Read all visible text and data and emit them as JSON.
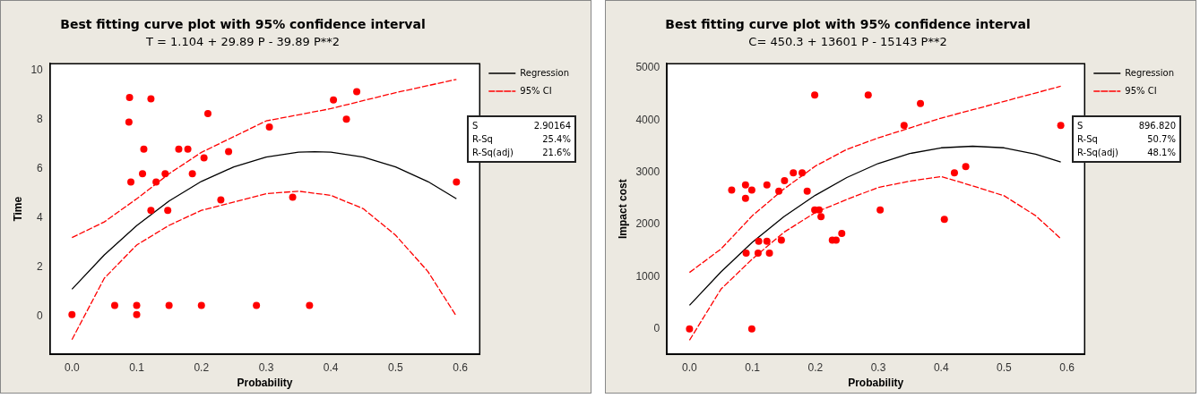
{
  "chart_data": [
    {
      "type": "scatter",
      "title": "Best fitting curve plot with 95%  confidence interval",
      "subtitle": "T =  1.104 + 29.89 P   - 39.89 P**2",
      "xlabel": "Probability",
      "ylabel": "Time",
      "xlim": [
        -0.034,
        0.63
      ],
      "ylim": [
        -1.55,
        10.28
      ],
      "xticks": [
        {
          "value": 0,
          "label": "0.0"
        },
        0.1,
        0.2,
        0.3,
        0.4,
        0.5,
        0.6
      ],
      "yticks": [
        0,
        2,
        4,
        6,
        8,
        10
      ],
      "grid": false,
      "legend": "right",
      "marker": "circle",
      "annotations": [
        "S 2.90164",
        "R-Sq 25.4%",
        "R-Sq(adj) 21.6%"
      ],
      "series": [
        {
          "type": "scatter",
          "color": "#ff0000",
          "x": [
            0.0,
            0.066,
            0.1,
            0.1,
            0.15,
            0.2,
            0.285,
            0.367,
            0.089,
            0.122,
            0.088,
            0.21,
            0.111,
            0.165,
            0.179,
            0.242,
            0.204,
            0.109,
            0.144,
            0.186,
            0.091,
            0.13,
            0.122,
            0.148,
            0.23,
            0.341,
            0.305,
            0.404,
            0.44,
            0.424,
            0.594
          ],
          "values": [
            0.07,
            0.44,
            0.44,
            0.07,
            0.44,
            0.44,
            0.44,
            0.44,
            8.9,
            8.85,
            7.9,
            8.25,
            6.8,
            6.8,
            6.8,
            6.7,
            6.45,
            5.8,
            5.8,
            5.8,
            5.46,
            5.46,
            4.31,
            4.31,
            4.74,
            4.85,
            7.7,
            8.8,
            9.14,
            8.02,
            5.46
          ]
        },
        {
          "type": "line",
          "name": "Regression",
          "color": "#000000",
          "marker": "none",
          "line_style": "solid",
          "x": [
            0,
            0.05,
            0.1,
            0.15,
            0.2,
            0.25,
            0.3,
            0.35,
            0.375,
            0.4,
            0.45,
            0.5,
            0.55,
            0.594
          ],
          "values": [
            1.1,
            2.5,
            3.69,
            4.69,
            5.49,
            6.08,
            6.48,
            6.68,
            6.7,
            6.68,
            6.48,
            6.08,
            5.48,
            4.78
          ]
        },
        {
          "type": "line",
          "name": "95% CI",
          "color": "#ff0000",
          "marker": "none",
          "line_style": "dashed",
          "x": [
            0,
            0.05,
            0.1,
            0.15,
            0.2,
            0.3,
            0.4,
            0.5,
            0.594
          ],
          "values": [
            3.2,
            3.84,
            4.78,
            5.8,
            6.67,
            7.95,
            8.45,
            9.1,
            9.64
          ]
        },
        {
          "type": "line",
          "color": "#ff0000",
          "marker": "none",
          "line_style": "dashed",
          "x": [
            0,
            0.05,
            0.1,
            0.15,
            0.2,
            0.3,
            0.35,
            0.4,
            0.45,
            0.5,
            0.55,
            0.594
          ],
          "values": [
            -0.95,
            1.55,
            2.9,
            3.7,
            4.31,
            4.99,
            5.09,
            4.92,
            4.38,
            3.3,
            1.82,
            0.0
          ]
        }
      ]
    },
    {
      "type": "scatter",
      "title": "Best fitting curve plot with 95%  confidence interval",
      "subtitle": "C=  450.3 + 13601 P   - 15143 P**2",
      "xlabel": "Probability",
      "ylabel": "Impact cost",
      "xlim": [
        -0.036,
        0.628
      ],
      "ylim": [
        -490,
        5083
      ],
      "xticks": [
        {
          "value": 0,
          "label": "0.0"
        },
        0.1,
        0.2,
        0.3,
        0.4,
        0.5,
        0.6
      ],
      "yticks": [
        0,
        1000,
        2000,
        3000,
        4000,
        5000
      ],
      "grid": false,
      "legend": "right",
      "marker": "circle",
      "annotations": [
        "S 896.820",
        "R-Sq 50.7%",
        "R-Sq(adj) 48.1%"
      ],
      "series": [
        {
          "type": "scatter",
          "color": "#ff0000",
          "x": [
            0,
            0.099,
            0.067,
            0.089,
            0.099,
            0.089,
            0.123,
            0.142,
            0.151,
            0.165,
            0.179,
            0.187,
            0.199,
            0.284,
            0.367,
            0.341,
            0.59,
            0.439,
            0.421,
            0.199,
            0.206,
            0.209,
            0.303,
            0.405,
            0.09,
            0.109,
            0.127,
            0.11,
            0.123,
            0.146,
            0.227,
            0.233,
            0.242
          ],
          "values": [
            0,
            0,
            2660,
            2760,
            2660,
            2500,
            2760,
            2640,
            2840,
            2990,
            2990,
            2640,
            4480,
            4480,
            4320,
            3900,
            3900,
            3110,
            2990,
            2280,
            2280,
            2150,
            2280,
            2100,
            1450,
            1450,
            1450,
            1680,
            1680,
            1700,
            1700,
            1700,
            1830
          ]
        },
        {
          "type": "line",
          "name": "Regression",
          "color": "#000000",
          "marker": "none",
          "line_style": "solid",
          "x": [
            0,
            0.05,
            0.1,
            0.15,
            0.2,
            0.25,
            0.3,
            0.35,
            0.4,
            0.45,
            0.5,
            0.55,
            0.59
          ],
          "values": [
            450,
            1090,
            1660,
            2150,
            2560,
            2900,
            3170,
            3360,
            3470,
            3500,
            3470,
            3350,
            3200
          ]
        },
        {
          "type": "line",
          "name": "95% CI",
          "color": "#ff0000",
          "marker": "none",
          "line_style": "dashed",
          "x": [
            0,
            0.05,
            0.1,
            0.15,
            0.2,
            0.25,
            0.3,
            0.35,
            0.4,
            0.45,
            0.5,
            0.59
          ],
          "values": [
            1080,
            1530,
            2170,
            2680,
            3120,
            3440,
            3660,
            3850,
            4040,
            4200,
            4360,
            4650
          ]
        },
        {
          "type": "line",
          "color": "#ff0000",
          "marker": "none",
          "line_style": "dashed",
          "x": [
            0,
            0.05,
            0.1,
            0.15,
            0.2,
            0.25,
            0.3,
            0.35,
            0.4,
            0.45,
            0.5,
            0.55,
            0.59
          ],
          "values": [
            -220,
            760,
            1340,
            1850,
            2230,
            2480,
            2710,
            2830,
            2920,
            2740,
            2550,
            2170,
            1730
          ]
        }
      ]
    }
  ]
}
